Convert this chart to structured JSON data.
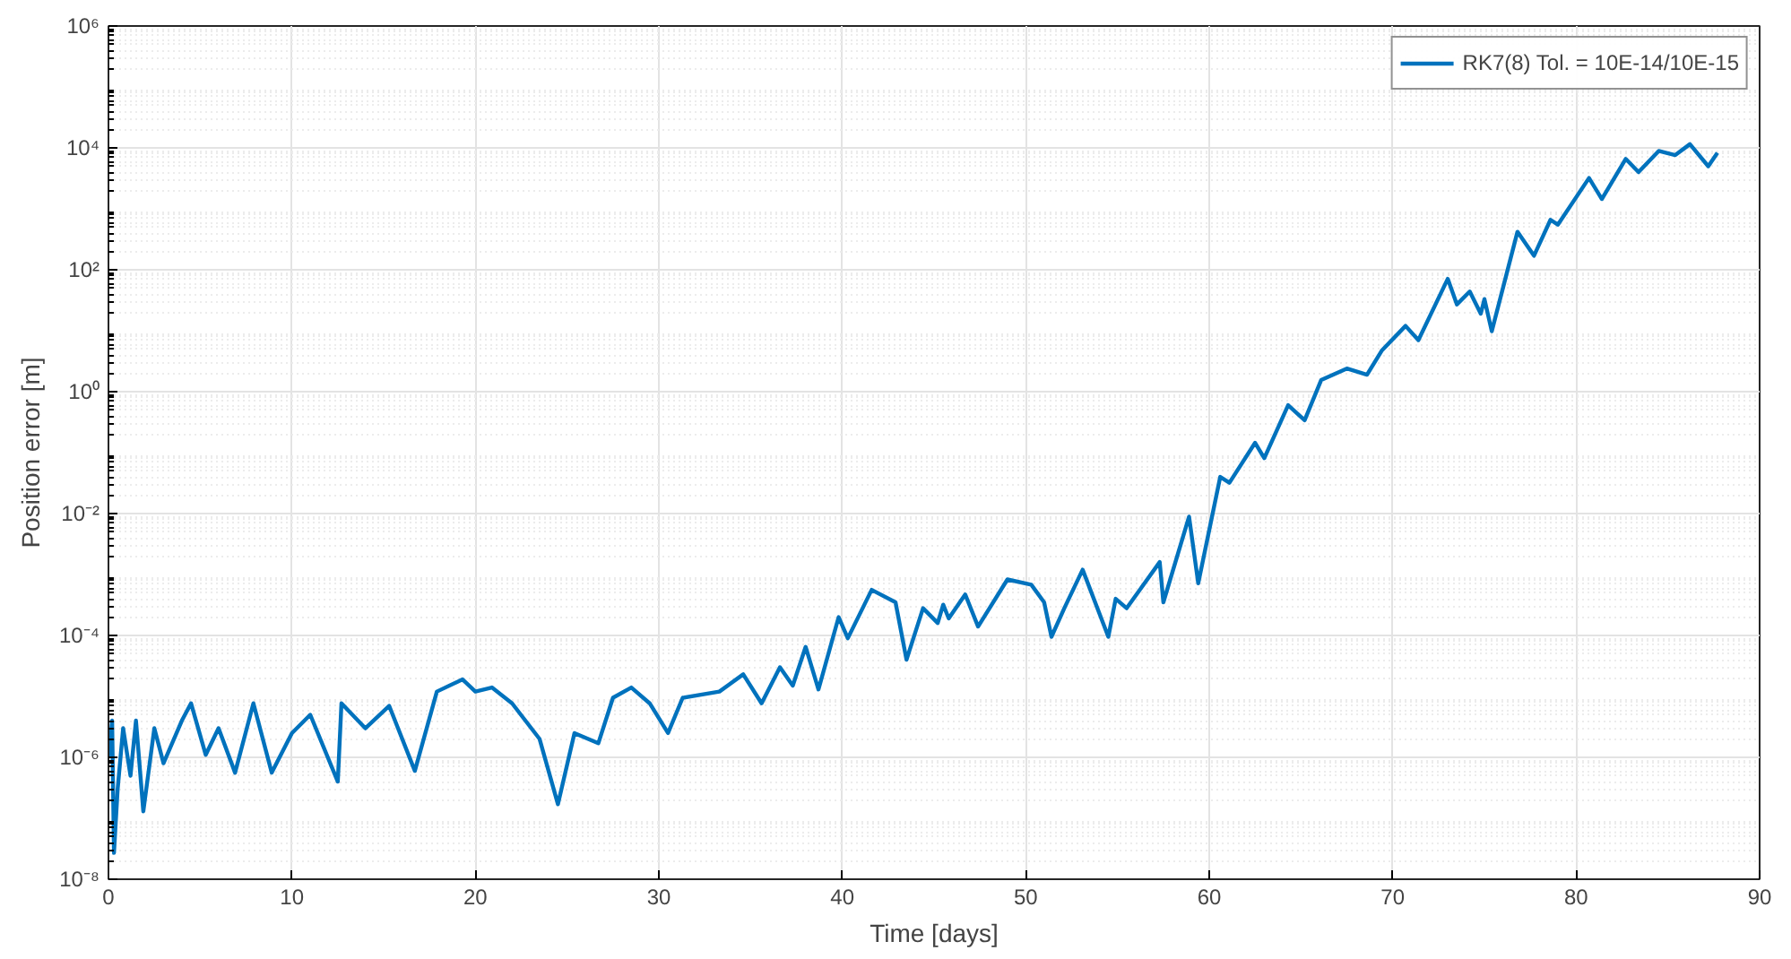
{
  "chart_data": {
    "type": "line",
    "xlabel": "Time [days]",
    "ylabel": "Position error [m]",
    "log": "y",
    "xlim": [
      0,
      90
    ],
    "xticks": [
      0,
      10,
      20,
      30,
      40,
      50,
      60,
      70,
      80,
      90
    ],
    "ylim": [
      1e-08,
      1000000.0
    ],
    "yticks": [
      {
        "value": 1e-08,
        "label": "10⁻⁸"
      },
      {
        "value": 1e-06,
        "label": "10⁻⁶"
      },
      {
        "value": 0.0001,
        "label": "10⁻⁴"
      },
      {
        "value": 0.01,
        "label": "10⁻²"
      },
      {
        "value": 1,
        "label": "10⁰"
      },
      {
        "value": 100,
        "label": "10²"
      },
      {
        "value": 10000,
        "label": "10⁴"
      },
      {
        "value": 1000000,
        "label": "10⁶"
      }
    ],
    "grid": true,
    "legend": "top right",
    "line_style": "solid",
    "marker": "none",
    "x": [
      0,
      0.2,
      0.3,
      0.5,
      0.8,
      1.2,
      1.5,
      1.9,
      2.5,
      3,
      4,
      4.5,
      5.3,
      6,
      6.9,
      7.9,
      8.9,
      10,
      11,
      12.5,
      12.7,
      14,
      15.3,
      16.7,
      17.9,
      19.3,
      20,
      20.9,
      22,
      23.5,
      24.5,
      25.4,
      26.7,
      27.5,
      28.5,
      29.5,
      30.5,
      31.3,
      33.3,
      34.6,
      35.6,
      36.6,
      37.3,
      38.0,
      38.7,
      39.8,
      40.3,
      41.6,
      42.9,
      43.5,
      44.4,
      45.2,
      45.5,
      45.8,
      46.7,
      47.4,
      49.0,
      50.3,
      51.0,
      51.4,
      52.1,
      53.1,
      54.5,
      54.9,
      55.5,
      57.3,
      57.5,
      58.9,
      59.4,
      60.6,
      61.1,
      62.5,
      63.0,
      64.3,
      65.2,
      66.1,
      67.5,
      68.6,
      69.4,
      70.7,
      71.4,
      73.0,
      73.5,
      74.2,
      74.8,
      75.0,
      75.4,
      76.8,
      77.7,
      78.6,
      79.0,
      80.7,
      81.4,
      82.7,
      83.4,
      84.5,
      85.4,
      86.2,
      87.2,
      87.7
    ],
    "series": [
      {
        "name": "RK7(8) Tol. = 10E-14/10E-15",
        "color": "#0072bd",
        "values": [
          1e-06,
          4e-06,
          2.7e-08,
          3e-07,
          3e-06,
          5e-07,
          4e-06,
          1.3e-07,
          3e-06,
          8e-07,
          4e-06,
          7.7e-06,
          1.1e-06,
          3e-06,
          5.6e-07,
          7.7e-06,
          5.6e-07,
          2.5e-06,
          5e-06,
          4e-07,
          7.7e-06,
          3e-06,
          7e-06,
          6e-07,
          1.2e-05,
          1.9e-05,
          1.2e-05,
          1.4e-05,
          7.7e-06,
          2e-06,
          1.7e-07,
          2.5e-06,
          1.7e-06,
          9.5e-06,
          1.4e-05,
          7.7e-06,
          2.5e-06,
          9.5e-06,
          1.2e-05,
          2.3e-05,
          7.7e-06,
          3e-05,
          1.5e-05,
          6.5e-05,
          1.3e-05,
          0.0002,
          9e-05,
          0.00056,
          0.00035,
          4e-05,
          0.00028,
          0.00016,
          0.00032,
          0.00019,
          0.00047,
          0.00014,
          0.00083,
          0.00068,
          0.00035,
          9.5e-05,
          0.00028,
          0.0012,
          9.5e-05,
          0.0004,
          0.00028,
          0.0016,
          0.00035,
          0.0089,
          0.00072,
          0.04,
          0.032,
          0.145,
          0.081,
          0.6,
          0.34,
          1.55,
          2.4,
          1.9,
          4.7,
          12,
          7,
          71,
          27,
          44,
          19,
          33,
          9.8,
          420,
          170,
          660,
          550,
          3200,
          1450,
          6600,
          4000,
          8900,
          7600,
          11500,
          5000,
          8300
        ]
      }
    ]
  }
}
